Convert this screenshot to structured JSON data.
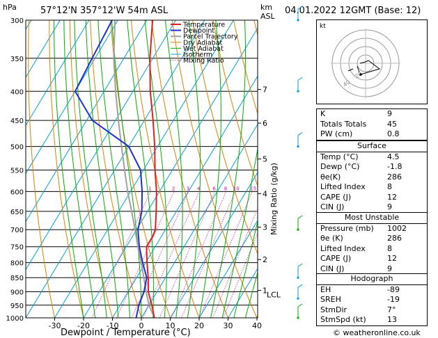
{
  "header": {
    "location": "57°12'N  357°12'W  54m  ASL",
    "datetime": "04.01.2022  12GMT  (Base: 12)",
    "pressure_unit": "hPa",
    "height_unit": "km\nASL",
    "height_unit_1": "km",
    "height_unit_2": "ASL"
  },
  "chart_data": {
    "type": "line",
    "title": "57°12'N  357°12'W  54m  ASL",
    "xlabel": "Dewpoint / Temperature (°C)",
    "ylabel": "hPa",
    "ylabel_right": "Mixing Ratio (g/kg)",
    "x_ticks": [
      -30,
      -20,
      -10,
      0,
      10,
      20,
      30,
      40
    ],
    "p_ticks": [
      300,
      350,
      400,
      450,
      500,
      550,
      600,
      650,
      700,
      750,
      800,
      850,
      900,
      950,
      1000
    ],
    "ylim": [
      1000,
      300
    ],
    "km_ticks": [
      {
        "p": 397,
        "label": "7"
      },
      {
        "p": 455,
        "label": "6"
      },
      {
        "p": 526,
        "label": "5"
      },
      {
        "p": 605,
        "label": "4"
      },
      {
        "p": 693,
        "label": "3"
      },
      {
        "p": 790,
        "label": "2"
      },
      {
        "p": 895,
        "label": "1"
      }
    ],
    "lcl": {
      "p": 910,
      "label": "LCL"
    },
    "mixing_ratio_labels": [
      "1",
      "2",
      "3",
      "4",
      "6",
      "8",
      "10",
      "15",
      "20",
      "25"
    ],
    "mixing_ratio_values": [
      1,
      2,
      3,
      4,
      6,
      8,
      10,
      15,
      20,
      25
    ],
    "legend": [
      "Temperature",
      "Dewpoint",
      "Parcel Trajectory",
      "Dry Adiabat",
      "Wet Adiabat",
      "Isotherm",
      "Mixing Ratio"
    ],
    "colors": {
      "temperature": "#e02020",
      "dewpoint": "#2030d0",
      "parcel": "#a0a0a0",
      "dry_adiabat": "#e08000",
      "wet_adiabat": "#00b000",
      "isotherm": "#00a0e0",
      "mixing_ratio": "#d000a0"
    },
    "series": [
      {
        "name": "Temperature",
        "p": [
          1000,
          950,
          925,
          900,
          850,
          800,
          750,
          720,
          700,
          650,
          600,
          550,
          500,
          450,
          400,
          350,
          300
        ],
        "t": [
          4.5,
          1.0,
          -1.0,
          -3.0,
          -6.0,
          -9.5,
          -13.0,
          -13.0,
          -13.5,
          -17.0,
          -21.0,
          -26.0,
          -31.0,
          -37.0,
          -44.0,
          -51.0,
          -58.0
        ]
      },
      {
        "name": "Dewpoint",
        "p": [
          1000,
          950,
          900,
          850,
          800,
          750,
          700,
          650,
          600,
          550,
          500,
          450,
          400,
          350,
          300
        ],
        "t": [
          -1.8,
          -3.5,
          -4.5,
          -6.5,
          -11.0,
          -15.5,
          -19.5,
          -22.0,
          -26.0,
          -31.0,
          -40.0,
          -58.0,
          -70.0,
          -71.0,
          -72.0
        ]
      },
      {
        "name": "Parcel Trajectory",
        "p": [
          1000,
          950,
          910,
          850,
          800,
          750,
          700,
          650,
          600,
          550,
          500,
          450,
          400,
          350,
          300
        ],
        "t": [
          4.5,
          0.0,
          -3.0,
          -7.5,
          -11.5,
          -16.0,
          -20.5,
          -25.5,
          -31.0,
          -36.5,
          -42.5,
          -49.0,
          -56.0,
          -63.5,
          -71.0
        ]
      }
    ]
  },
  "winds": [
    {
      "p": 300,
      "color": "#00a0e0"
    },
    {
      "p": 400,
      "color": "#00a0e0"
    },
    {
      "p": 500,
      "color": "#00a0e0"
    },
    {
      "p": 700,
      "color": "#00b000"
    },
    {
      "p": 850,
      "color": "#00a0e0"
    },
    {
      "p": 925,
      "color": "#00a0e0"
    },
    {
      "p": 1000,
      "color": "#00b000"
    }
  ],
  "hodograph": {
    "label": "kt",
    "ring_labels": [
      "20",
      "40"
    ]
  },
  "indices": [
    {
      "k": "K",
      "v": "9"
    },
    {
      "k": "Totals Totals",
      "v": "45"
    },
    {
      "k": "PW (cm)",
      "v": "0.8"
    }
  ],
  "surface": {
    "title": "Surface",
    "rows": [
      {
        "k": "Temp (°C)",
        "v": "4.5"
      },
      {
        "k": "Dewp (°C)",
        "v": "-1.8"
      },
      {
        "k": "θe(K)",
        "v": "286"
      },
      {
        "k": "Lifted Index",
        "v": "8"
      },
      {
        "k": "CAPE (J)",
        "v": "12"
      },
      {
        "k": "CIN (J)",
        "v": "9"
      }
    ]
  },
  "most_unstable": {
    "title": "Most Unstable",
    "rows": [
      {
        "k": "Pressure (mb)",
        "v": "1002"
      },
      {
        "k": "θe (K)",
        "v": "286"
      },
      {
        "k": "Lifted Index",
        "v": "8"
      },
      {
        "k": "CAPE (J)",
        "v": "12"
      },
      {
        "k": "CIN (J)",
        "v": "9"
      }
    ]
  },
  "hodograph_table": {
    "title": "Hodograph",
    "rows": [
      {
        "k": "EH",
        "v": "-89"
      },
      {
        "k": "SREH",
        "v": "-19"
      },
      {
        "k": "StmDir",
        "v": "7°"
      },
      {
        "k": "StmSpd (kt)",
        "v": "13"
      }
    ]
  },
  "footer": {
    "copyright": "© weatheronline.co.uk"
  }
}
